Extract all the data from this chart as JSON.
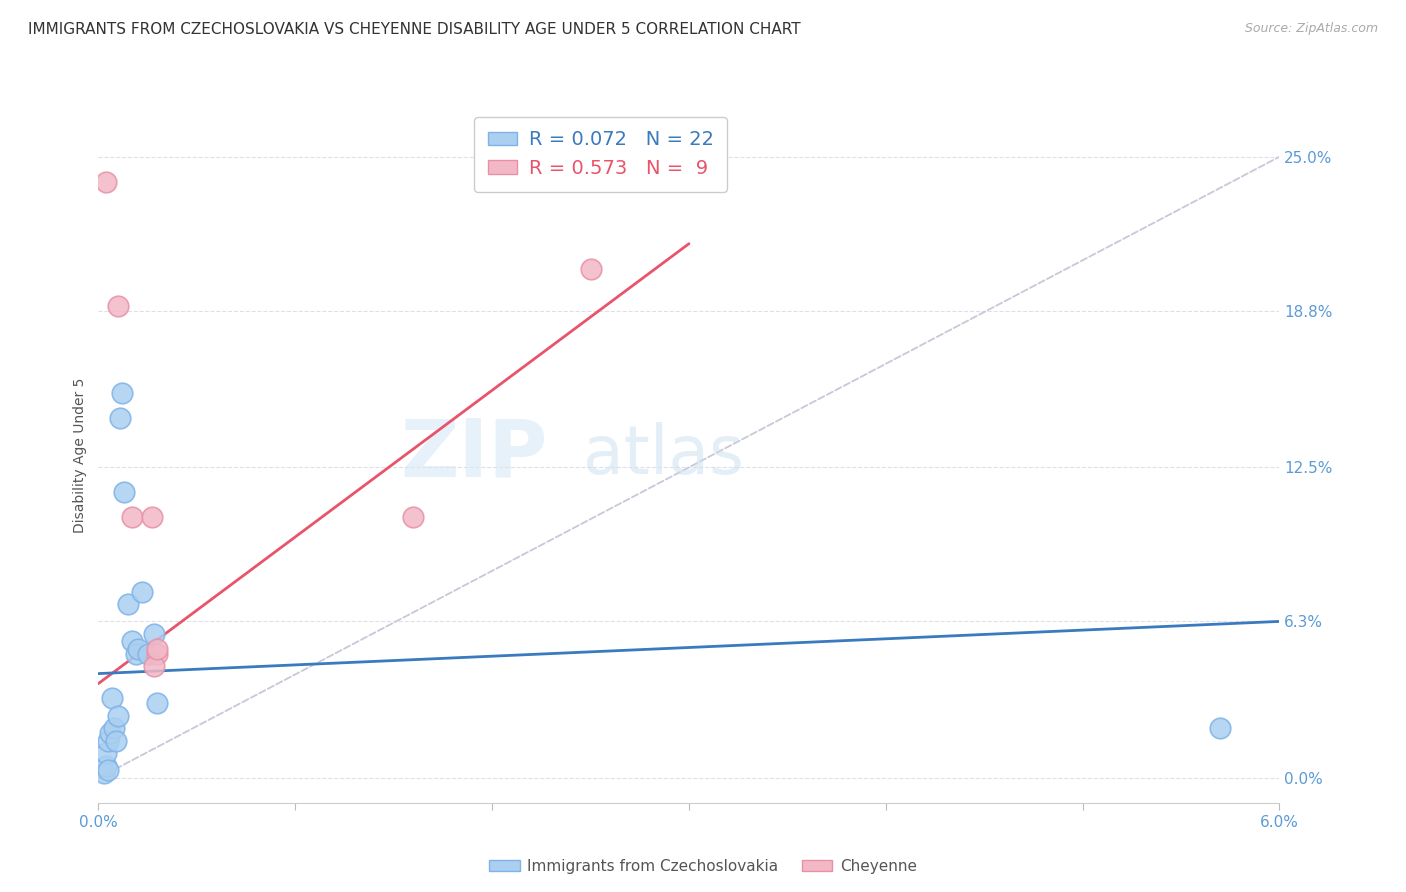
{
  "title": "IMMIGRANTS FROM CZECHOSLOVAKIA VS CHEYENNE DISABILITY AGE UNDER 5 CORRELATION CHART",
  "source": "Source: ZipAtlas.com",
  "ylabel": "Disability Age Under 5",
  "ytick_vals": [
    0.0,
    6.3,
    12.5,
    18.8,
    25.0
  ],
  "ytick_labels": [
    "0.0%",
    "6.3%",
    "12.5%",
    "18.8%",
    "25.0%"
  ],
  "xlim": [
    0.0,
    6.0
  ],
  "ylim": [
    -1.0,
    27.0
  ],
  "legend_blue_R": "R = 0.072",
  "legend_blue_N": "N = 22",
  "legend_pink_R": "R = 0.573",
  "legend_pink_N": "N =  9",
  "series_blue_label": "Immigrants from Czechoslovakia",
  "series_pink_label": "Cheyenne",
  "blue_color": "#aacff0",
  "pink_color": "#f2b8c6",
  "blue_edge_color": "#7fb3e8",
  "pink_edge_color": "#e890a8",
  "trendline_blue_color": "#3a7abf",
  "trendline_pink_color": "#e8546a",
  "trendline_dashed_color": "#c8c8d8",
  "blue_points_x": [
    0.03,
    0.04,
    0.04,
    0.05,
    0.05,
    0.06,
    0.07,
    0.08,
    0.09,
    0.1,
    0.11,
    0.12,
    0.13,
    0.15,
    0.17,
    0.19,
    0.2,
    0.22,
    0.25,
    0.28,
    0.3,
    5.7
  ],
  "blue_points_y": [
    0.2,
    0.5,
    1.0,
    1.5,
    0.3,
    1.8,
    3.2,
    2.0,
    1.5,
    2.5,
    14.5,
    15.5,
    11.5,
    7.0,
    5.5,
    5.0,
    5.2,
    7.5,
    5.0,
    5.8,
    3.0,
    2.0
  ],
  "pink_points_x": [
    0.04,
    0.1,
    0.17,
    0.27,
    0.3,
    1.6,
    2.5,
    0.28,
    0.3
  ],
  "pink_points_y": [
    24.0,
    19.0,
    10.5,
    10.5,
    5.0,
    10.5,
    20.5,
    4.5,
    5.2
  ],
  "blue_trendline_x": [
    0.0,
    6.0
  ],
  "blue_trendline_y": [
    4.2,
    6.3
  ],
  "pink_trendline_x": [
    0.0,
    3.0
  ],
  "pink_trendline_y": [
    3.8,
    21.5
  ],
  "dashed_trendline_x": [
    0.0,
    6.0
  ],
  "dashed_trendline_y": [
    0.0,
    25.0
  ],
  "watermark_zip": "ZIP",
  "watermark_atlas": "atlas",
  "background_color": "#ffffff",
  "grid_color": "#dde0e8",
  "title_fontsize": 11,
  "axis_label_fontsize": 10,
  "tick_fontsize": 11,
  "legend_fontsize": 14
}
